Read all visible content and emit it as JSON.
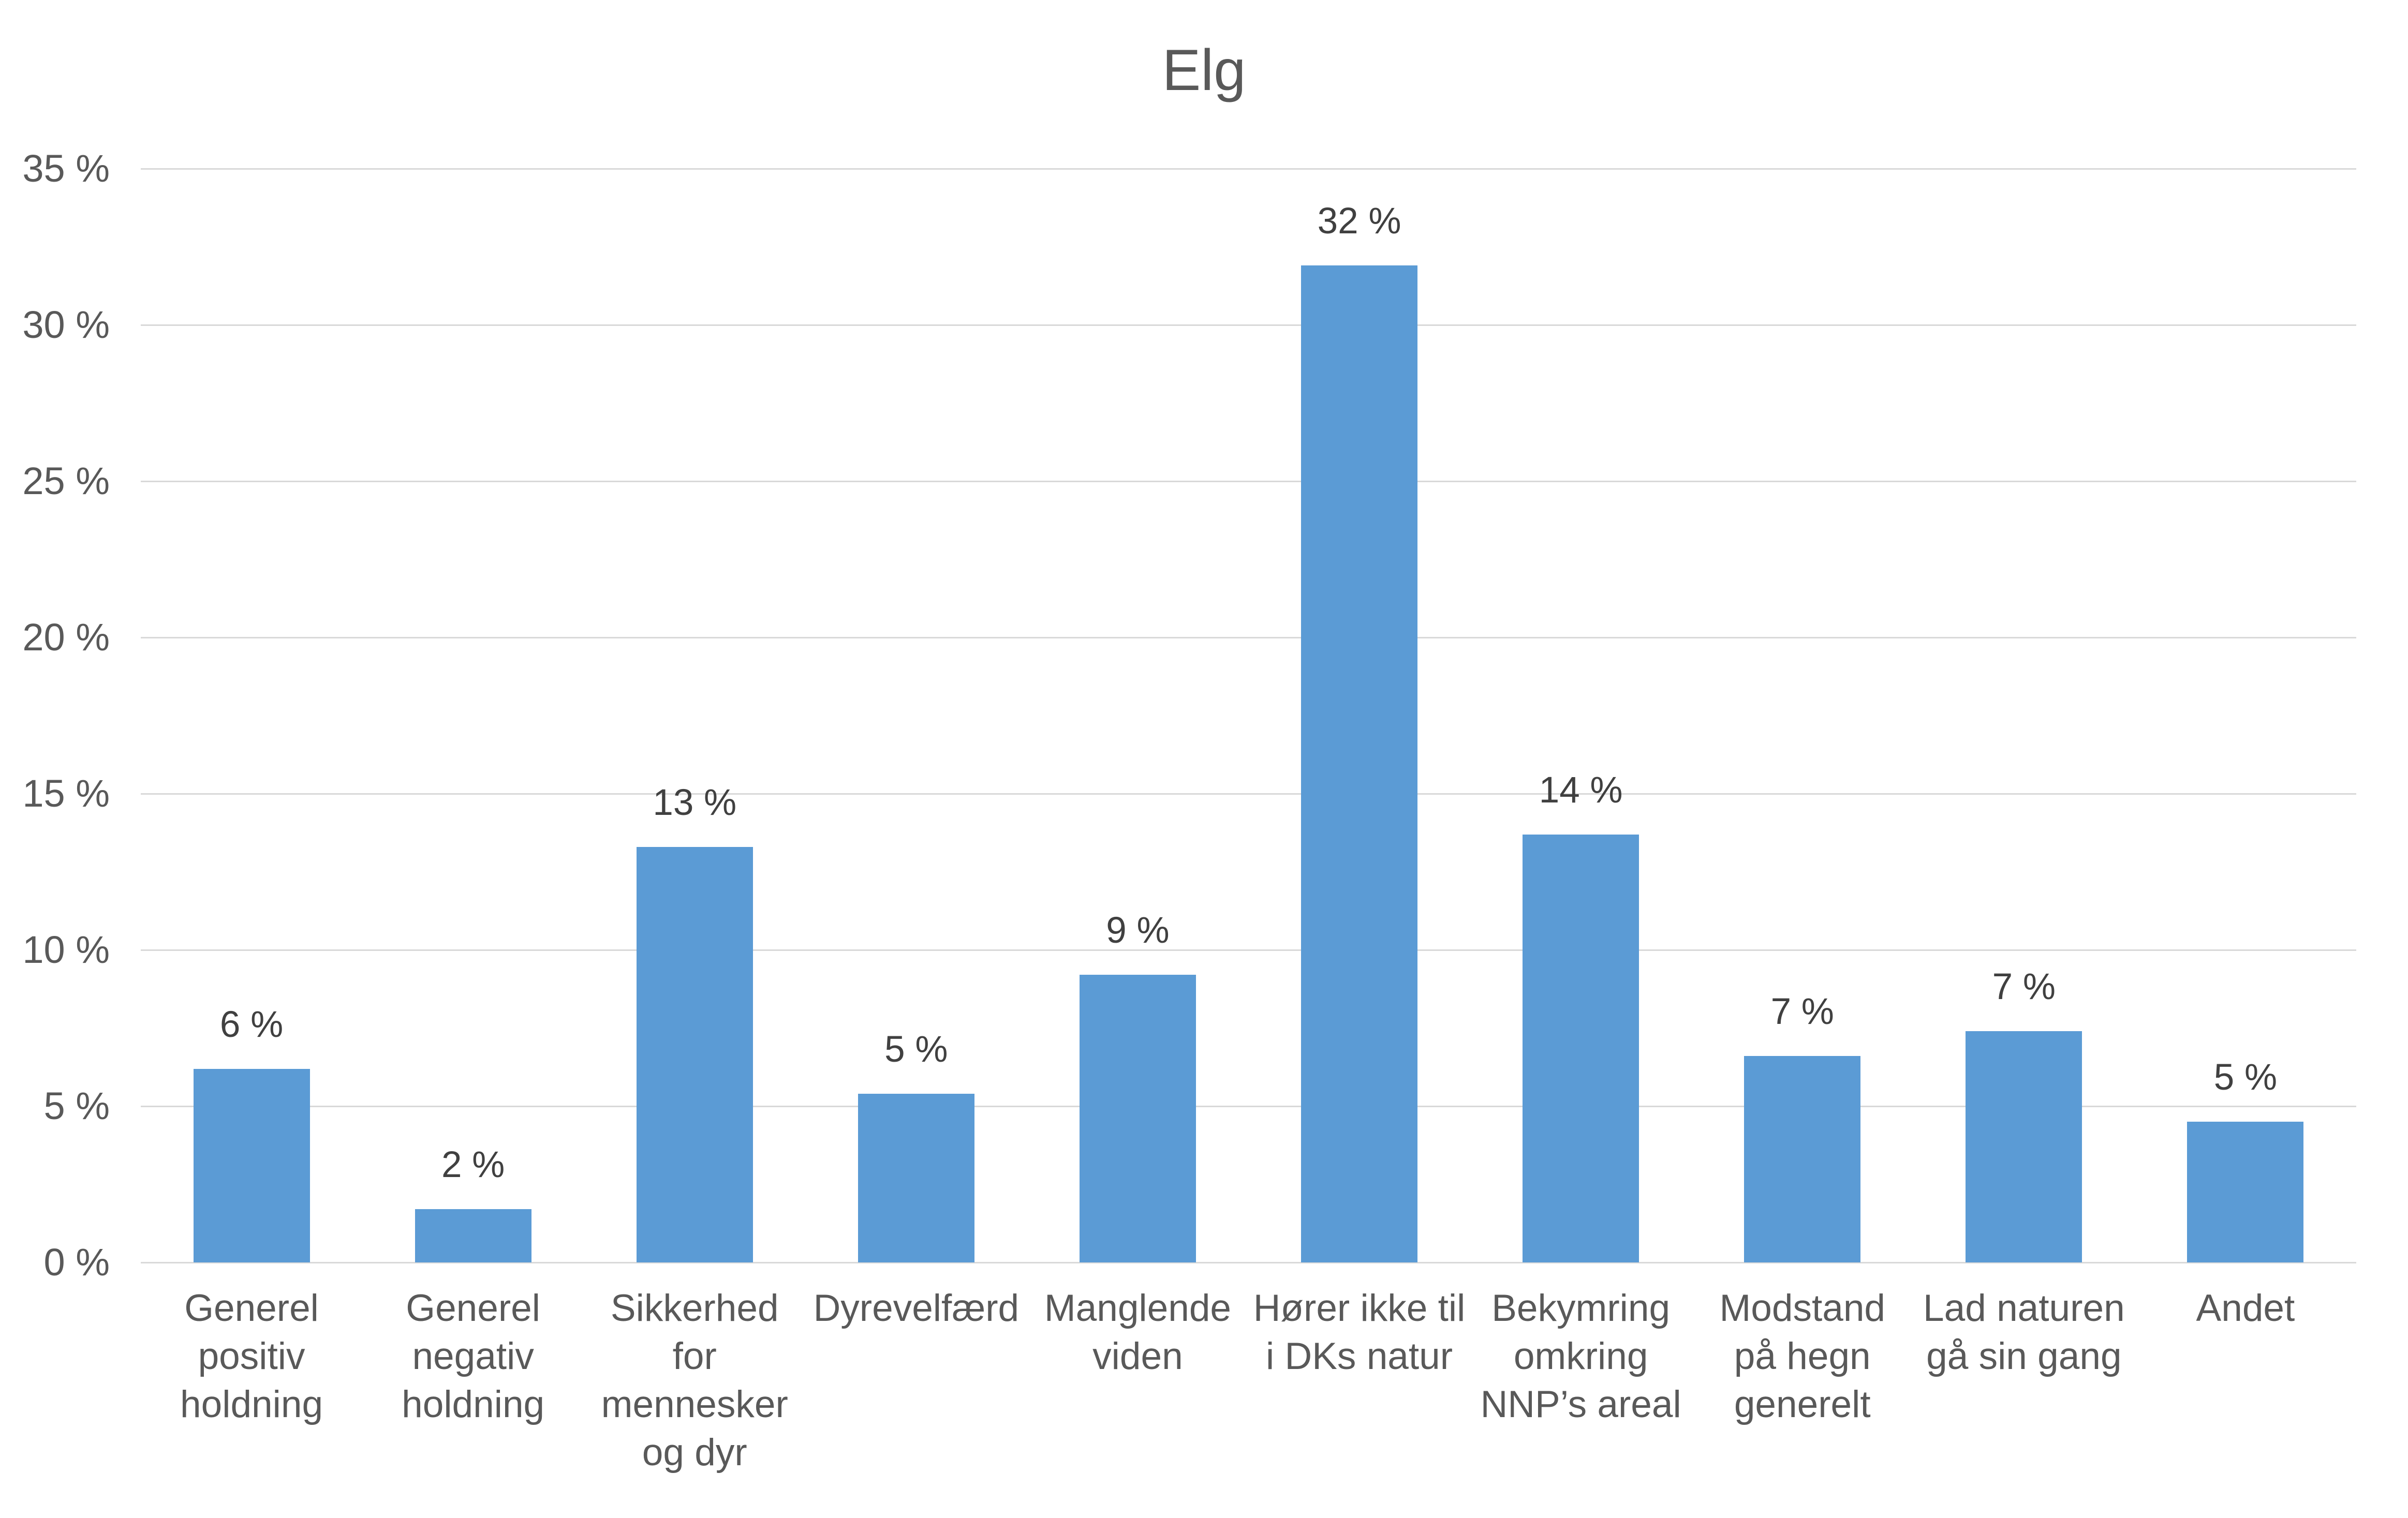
{
  "chart_data": {
    "type": "bar",
    "title": "Elg",
    "categories": [
      "Generel\npositiv\nholdning",
      "Generel\nnegativ\nholdning",
      "Sikkerhed\nfor\nmennesker\nog dyr",
      "Dyrevelfærd",
      "Manglende\nviden",
      "Hører ikke til\ni DKs natur",
      "Bekymring\nomkring\nNNP’s areal",
      "Modstand\npå hegn\ngenerelt",
      "Lad naturen\ngå sin gang",
      "Andet"
    ],
    "values": [
      6.2,
      1.7,
      13.3,
      5.4,
      9.2,
      31.9,
      13.7,
      6.6,
      7.4,
      4.5
    ],
    "data_labels": [
      "6 %",
      "2 %",
      "13 %",
      "5 %",
      "9 %",
      "32 %",
      "14 %",
      "7 %",
      "7 %",
      "5 %"
    ],
    "xlabel": "",
    "ylabel": "",
    "ylim": [
      0,
      35
    ],
    "y_tick_step": 5,
    "y_tick_labels": [
      "0 %",
      "5 %",
      "10 %",
      "15 %",
      "20 %",
      "25 %",
      "30 %",
      "35 %"
    ],
    "grid": true,
    "legend": "none",
    "colors": {
      "bar": "#5b9bd5",
      "gridline": "#d9d9d9",
      "axis_text": "#595959",
      "data_label_text": "#404040",
      "title_text": "#595959",
      "background": "#ffffff"
    }
  }
}
